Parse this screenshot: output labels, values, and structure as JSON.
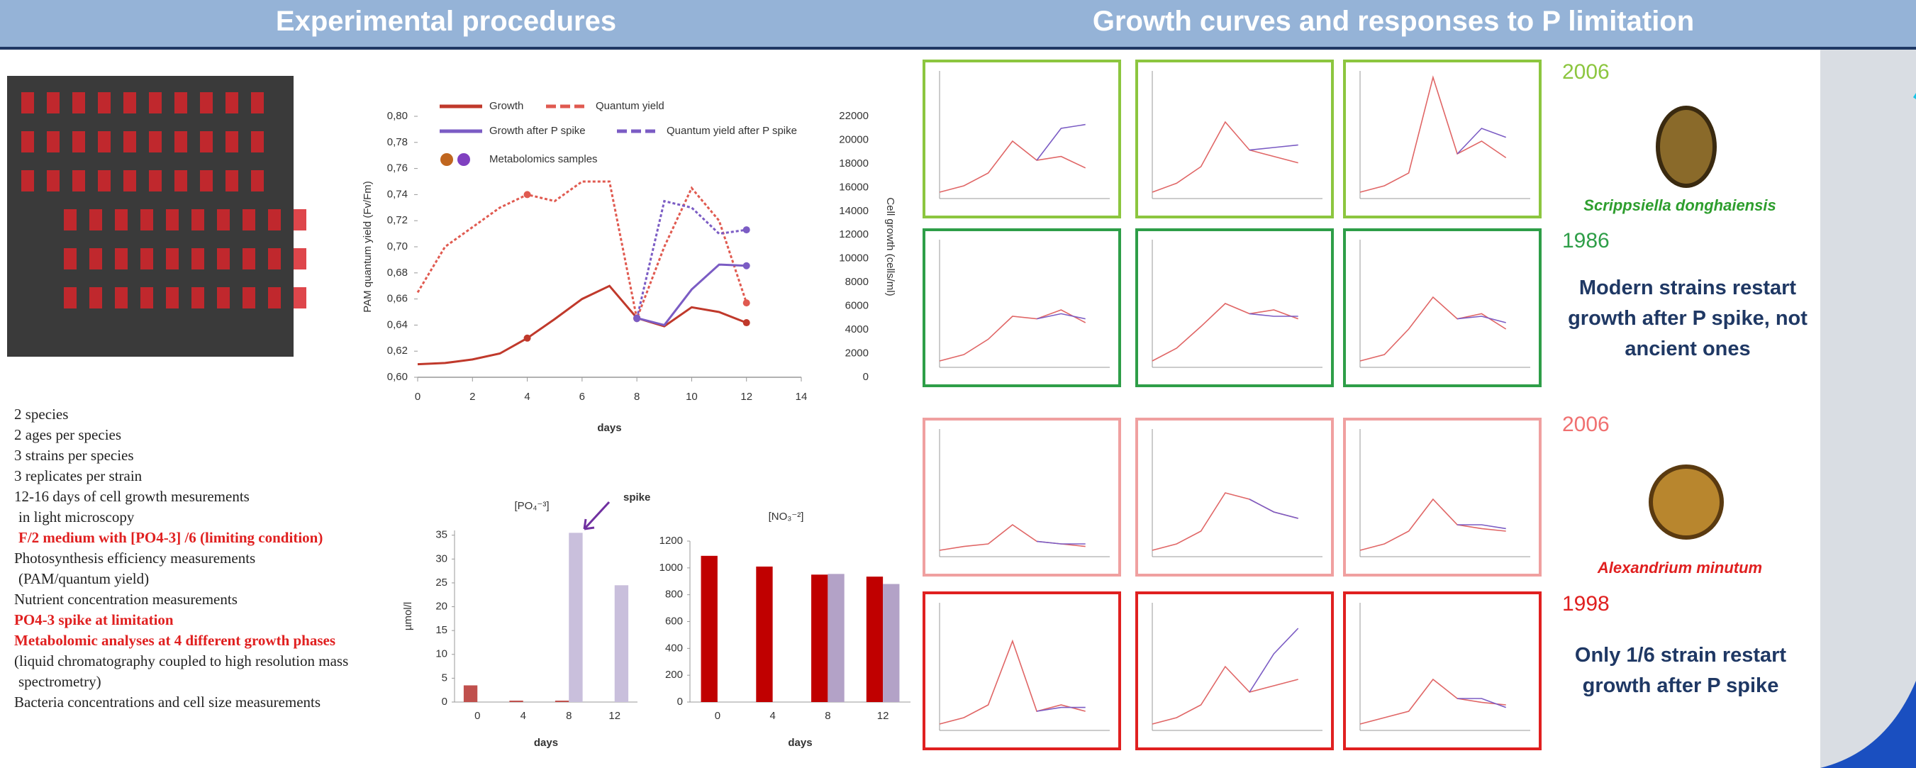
{
  "header": {
    "left_title": "Experimental procedures",
    "right_title": "Growth curves and responses to P limitation"
  },
  "methods": [
    {
      "text": "2 species",
      "color": "#222222"
    },
    {
      "text": "2 ages per species",
      "color": "#222222"
    },
    {
      "text": "3 strains per species",
      "color": "#222222"
    },
    {
      "text": "3 replicates per strain",
      "color": "#222222"
    },
    {
      "text": "12-16 days of cell growth mesurements",
      "color": "#222222"
    },
    {
      "text": "in light microscopy",
      "color": "#222222",
      "indent": true
    },
    {
      "text": "F/2 medium with [PO4-3] /6 (limiting condition)",
      "color": "#e02020",
      "indent": true,
      "bold": true
    },
    {
      "text": "Photosynthesis efficiency measurements",
      "color": "#222222"
    },
    {
      "text": "(PAM/quantum yield)",
      "color": "#222222",
      "indent": true
    },
    {
      "text": "Nutrient concentration measurements",
      "color": "#222222"
    },
    {
      "text": "PO4-3  spike at limitation",
      "color": "#e02020",
      "bold": true
    },
    {
      "text": "Metabolomic analyses at 4 different growth phases",
      "color": "#e02020",
      "bold": true
    },
    {
      "text": "(liquid chromatography coupled to high resolution mass",
      "color": "#222222"
    },
    {
      "text": "spectrometry)",
      "color": "#222222",
      "indent": true
    },
    {
      "text": "Bacteria concentrations and cell size measurements",
      "color": "#222222"
    }
  ],
  "right": {
    "rows": [
      {
        "label": "2006",
        "color": "#8cc63f"
      },
      {
        "label": "1986",
        "color": "#2e9e48"
      },
      {
        "label": "2006",
        "color": "#f07070"
      },
      {
        "label": "1998",
        "color": "#e02020"
      }
    ],
    "species": [
      {
        "name": "Scrippsiella donghaiensis",
        "color": "#2e9e2e"
      },
      {
        "name": "Alexandrium minutum",
        "color": "#e02020"
      }
    ],
    "conclusions": [
      "Modern strains restart growth after P spike, not ancient ones",
      "Only 1/6 strain restart growth after P spike"
    ]
  },
  "chart_data": [
    {
      "type": "line",
      "x": [
        0,
        1,
        2,
        3,
        4,
        5,
        6,
        7,
        8,
        9,
        10,
        11,
        12
      ],
      "xlim": [
        0,
        14
      ],
      "xticks": [
        0,
        2,
        4,
        6,
        8,
        10,
        12,
        14
      ],
      "ylim": [
        0.6,
        0.8
      ],
      "yticks": [
        {
          "value": 0.6,
          "label": "0,60"
        },
        {
          "value": 0.62,
          "label": "0,62"
        },
        {
          "value": 0.64,
          "label": "0,64"
        },
        {
          "value": 0.66,
          "label": "0,66"
        },
        {
          "value": 0.68,
          "label": "0,68"
        },
        {
          "value": 0.7,
          "label": "0,70"
        },
        {
          "value": 0.72,
          "label": "0,72"
        },
        {
          "value": 0.74,
          "label": "0,74"
        },
        {
          "value": 0.76,
          "label": "0,76"
        },
        {
          "value": 0.78,
          "label": "0,78"
        },
        {
          "value": 0.8,
          "label": "0,80"
        }
      ],
      "y2lim": [
        0,
        22000
      ],
      "y2ticks": [
        0,
        2000,
        4000,
        6000,
        8000,
        10000,
        12000,
        14000,
        16000,
        18000,
        20000,
        22000
      ],
      "y_label": "PAM quantum yield (Fv/Fm)",
      "y2_label": "Cell growth (cells/ml)",
      "x_label": "days",
      "markers": [
        4,
        8,
        12
      ],
      "series": [
        {
          "name": "Growth",
          "color": "#c0392b",
          "axis": "y2",
          "values": [
            1100,
            1200,
            1500,
            2000,
            3300,
            4900,
            6600,
            7700,
            5000,
            4300,
            5900,
            5500,
            4600
          ]
        },
        {
          "name": "Quantum yield",
          "color": "#e05a50",
          "dash": true,
          "values": [
            0.665,
            0.7,
            0.715,
            0.73,
            0.74,
            0.735,
            0.75,
            0.75,
            0.645,
            0.7,
            0.745,
            0.72,
            0.657
          ]
        },
        {
          "name": "Growth after P spike",
          "color": "#7b5cc4",
          "axis": "y2",
          "values": [
            null,
            null,
            null,
            null,
            null,
            null,
            null,
            null,
            5000,
            4400,
            7400,
            9500,
            9400
          ]
        },
        {
          "name": "Quantum yield after P spike",
          "color": "#7b5cc4",
          "dash": true,
          "values": [
            null,
            null,
            null,
            null,
            null,
            null,
            null,
            null,
            0.645,
            0.735,
            0.73,
            0.71,
            0.713
          ]
        },
        {
          "name": "Metabolomics samples",
          "colors": [
            "#c0661f",
            "#8040c0"
          ]
        }
      ]
    },
    {
      "type": "bar",
      "title": "[PO₄⁻³]",
      "annotation": "spike",
      "categories": [
        "0",
        "4",
        "8",
        "12"
      ],
      "ylim": [
        0,
        36
      ],
      "yticks": [
        0,
        5,
        10,
        15,
        20,
        25,
        30,
        35
      ],
      "y_label": "µmol/l",
      "x_label": "days",
      "series": [
        {
          "color": "#c0504d",
          "values": [
            3.5,
            0.3,
            0.3,
            null
          ]
        },
        {
          "color": "#c9bfdc",
          "values": [
            null,
            null,
            35.5,
            24.5
          ]
        }
      ]
    },
    {
      "type": "bar",
      "title": "[NO₃⁻²]",
      "categories": [
        "0",
        "4",
        "8",
        "12"
      ],
      "ylim": [
        0,
        1200
      ],
      "yticks": [
        0,
        200,
        400,
        600,
        800,
        1000,
        1200
      ],
      "x_label": "days",
      "series": [
        {
          "color": "#c00000",
          "values": [
            1090,
            1010,
            950,
            935
          ]
        },
        {
          "color": "#b3a2c7",
          "values": [
            null,
            null,
            955,
            880
          ]
        }
      ]
    },
    {
      "type": "line",
      "frame_color": "#8cc63f",
      "x": [
        0,
        2,
        4,
        6,
        8,
        10,
        12
      ],
      "xlim": [
        0,
        14
      ],
      "ylim": [
        0,
        100
      ],
      "series": [
        {
          "color": "#e06666",
          "values": [
            5,
            10,
            20,
            45,
            30,
            33,
            24
          ]
        },
        {
          "color": "#7b5cc4",
          "values": [
            null,
            null,
            null,
            null,
            30,
            55,
            58
          ]
        }
      ]
    },
    {
      "type": "line",
      "frame_color": "#8cc63f",
      "x": [
        0,
        2,
        4,
        6,
        8,
        10,
        12
      ],
      "xlim": [
        0,
        14
      ],
      "ylim": [
        0,
        100
      ],
      "series": [
        {
          "color": "#e06666",
          "values": [
            5,
            12,
            25,
            60,
            38,
            33,
            28
          ]
        },
        {
          "color": "#7b5cc4",
          "values": [
            null,
            null,
            null,
            null,
            38,
            40,
            42
          ]
        }
      ]
    },
    {
      "type": "line",
      "frame_color": "#8cc63f",
      "x": [
        0,
        2,
        4,
        6,
        8,
        10,
        12
      ],
      "xlim": [
        0,
        14
      ],
      "ylim": [
        0,
        100
      ],
      "series": [
        {
          "color": "#e06666",
          "values": [
            5,
            10,
            20,
            95,
            35,
            45,
            32
          ]
        },
        {
          "color": "#7b5cc4",
          "values": [
            null,
            null,
            null,
            null,
            35,
            55,
            48
          ]
        }
      ]
    },
    {
      "type": "line",
      "frame_color": "#2e9e48",
      "x": [
        0,
        2,
        4,
        6,
        8,
        10,
        12
      ],
      "xlim": [
        0,
        14
      ],
      "ylim": [
        0,
        100
      ],
      "series": [
        {
          "color": "#e06666",
          "values": [
            5,
            10,
            22,
            40,
            38,
            45,
            35
          ]
        },
        {
          "color": "#7b5cc4",
          "values": [
            null,
            null,
            null,
            null,
            38,
            42,
            38
          ]
        }
      ]
    },
    {
      "type": "line",
      "frame_color": "#2e9e48",
      "x": [
        0,
        2,
        4,
        6,
        8,
        10,
        12
      ],
      "xlim": [
        0,
        14
      ],
      "ylim": [
        0,
        100
      ],
      "series": [
        {
          "color": "#e06666",
          "values": [
            5,
            15,
            32,
            50,
            42,
            45,
            38
          ]
        },
        {
          "color": "#7b5cc4",
          "values": [
            null,
            null,
            null,
            null,
            42,
            40,
            40
          ]
        }
      ]
    },
    {
      "type": "line",
      "frame_color": "#2e9e48",
      "x": [
        0,
        2,
        4,
        6,
        8,
        10,
        12
      ],
      "xlim": [
        0,
        14
      ],
      "ylim": [
        0,
        100
      ],
      "series": [
        {
          "color": "#e06666",
          "values": [
            5,
            10,
            30,
            55,
            38,
            42,
            30
          ]
        },
        {
          "color": "#7b5cc4",
          "values": [
            null,
            null,
            null,
            null,
            38,
            40,
            35
          ]
        }
      ]
    },
    {
      "type": "line",
      "frame_color": "#f0a0a0",
      "x": [
        0,
        2,
        4,
        6,
        8,
        10,
        12
      ],
      "xlim": [
        0,
        14
      ],
      "ylim": [
        0,
        100
      ],
      "series": [
        {
          "color": "#e06666",
          "values": [
            5,
            8,
            10,
            25,
            12,
            10,
            8
          ]
        },
        {
          "color": "#7b5cc4",
          "values": [
            null,
            null,
            null,
            null,
            12,
            10,
            10
          ]
        }
      ]
    },
    {
      "type": "line",
      "frame_color": "#f0a0a0",
      "x": [
        0,
        2,
        4,
        6,
        8,
        10,
        12
      ],
      "xlim": [
        0,
        14
      ],
      "ylim": [
        0,
        100
      ],
      "series": [
        {
          "color": "#e06666",
          "values": [
            5,
            10,
            20,
            50,
            45,
            35,
            30
          ]
        },
        {
          "color": "#7b5cc4",
          "values": [
            null,
            null,
            null,
            null,
            45,
            35,
            30
          ]
        }
      ]
    },
    {
      "type": "line",
      "frame_color": "#f0a0a0",
      "x": [
        0,
        2,
        4,
        6,
        8,
        10,
        12
      ],
      "xlim": [
        0,
        14
      ],
      "ylim": [
        0,
        100
      ],
      "series": [
        {
          "color": "#e06666",
          "values": [
            5,
            10,
            20,
            45,
            25,
            22,
            20
          ]
        },
        {
          "color": "#7b5cc4",
          "values": [
            null,
            null,
            null,
            null,
            25,
            25,
            22
          ]
        }
      ]
    },
    {
      "type": "line",
      "frame_color": "#e02020",
      "x": [
        0,
        2,
        4,
        6,
        8,
        10,
        12
      ],
      "xlim": [
        0,
        14
      ],
      "ylim": [
        0,
        100
      ],
      "series": [
        {
          "color": "#e06666",
          "values": [
            5,
            10,
            20,
            70,
            15,
            20,
            15
          ]
        },
        {
          "color": "#7b5cc4",
          "values": [
            null,
            null,
            null,
            null,
            15,
            18,
            18
          ]
        }
      ]
    },
    {
      "type": "line",
      "frame_color": "#e02020",
      "x": [
        0,
        2,
        4,
        6,
        8,
        10,
        12
      ],
      "xlim": [
        0,
        14
      ],
      "ylim": [
        0,
        100
      ],
      "series": [
        {
          "color": "#e06666",
          "values": [
            5,
            10,
            20,
            50,
            30,
            35,
            40
          ]
        },
        {
          "color": "#7b5cc4",
          "values": [
            null,
            null,
            null,
            null,
            30,
            60,
            80
          ]
        }
      ]
    },
    {
      "type": "line",
      "frame_color": "#e02020",
      "x": [
        0,
        2,
        4,
        6,
        8,
        10,
        12
      ],
      "xlim": [
        0,
        14
      ],
      "ylim": [
        0,
        100
      ],
      "series": [
        {
          "color": "#e06666",
          "values": [
            5,
            10,
            15,
            40,
            25,
            22,
            20
          ]
        },
        {
          "color": "#7b5cc4",
          "values": [
            null,
            null,
            null,
            null,
            25,
            25,
            18
          ]
        }
      ]
    }
  ]
}
